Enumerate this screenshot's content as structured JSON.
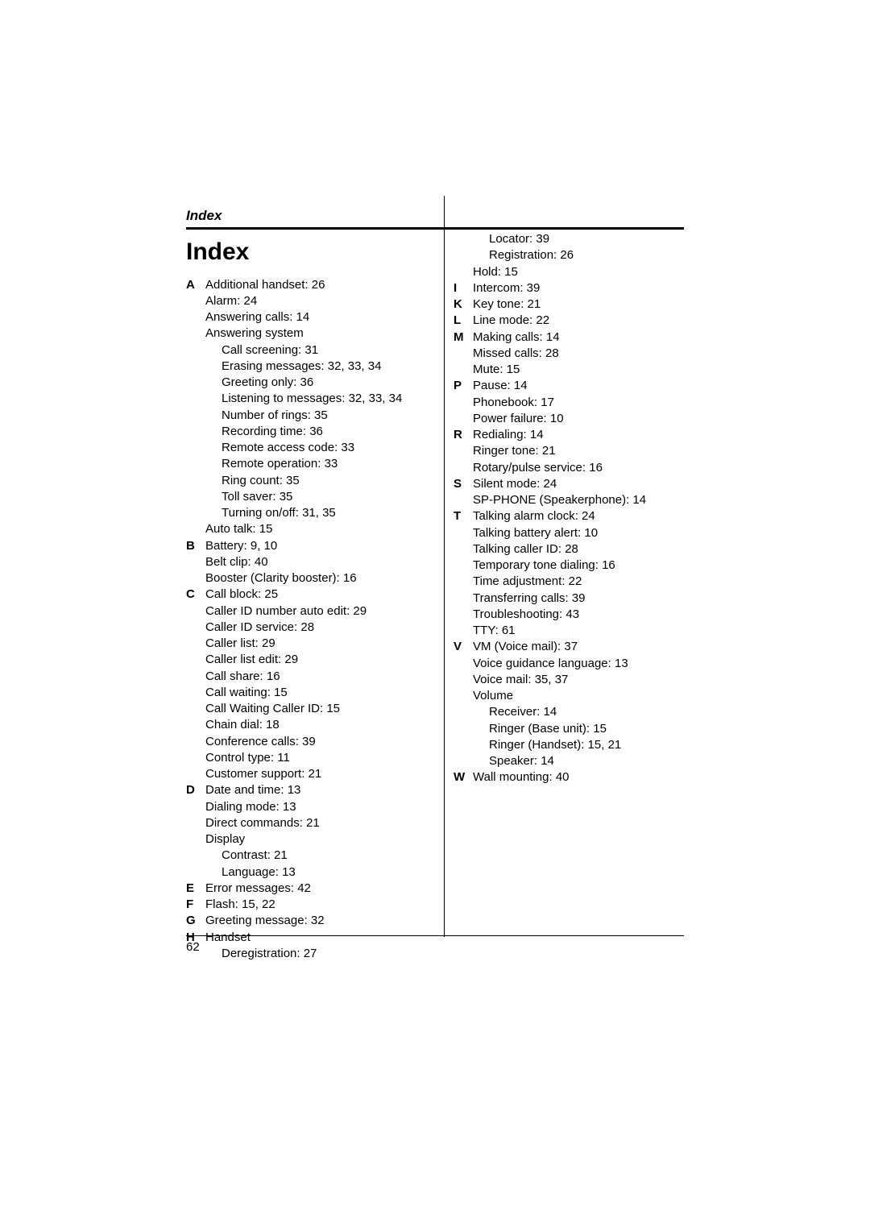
{
  "header": {
    "running_head": "Index",
    "title": "Index",
    "page_number": "62"
  },
  "left": {
    "A": {
      "letter": "A",
      "l0": "Additional handset: 26",
      "l1": "Alarm: 24",
      "l2": "Answering calls: 14",
      "l3": "Answering system",
      "l3a": "Call screening: 31",
      "l3b": "Erasing messages: 32, 33, 34",
      "l3c": "Greeting only: 36",
      "l3d": "Listening to messages: 32, 33, 34",
      "l3e": "Number of rings: 35",
      "l3f": "Recording time: 36",
      "l3g": "Remote access code: 33",
      "l3h": "Remote operation: 33",
      "l3i": "Ring count: 35",
      "l3j": "Toll saver: 35",
      "l3k": "Turning on/off: 31, 35",
      "l4": "Auto talk: 15"
    },
    "B": {
      "letter": "B",
      "l0": "Battery: 9, 10",
      "l1": "Belt clip: 40",
      "l2": "Booster (Clarity booster): 16"
    },
    "C": {
      "letter": "C",
      "l0": "Call block: 25",
      "l1": "Caller ID number auto edit: 29",
      "l2": "Caller ID service: 28",
      "l3": "Caller list: 29",
      "l4": "Caller list edit: 29",
      "l5": "Call share: 16",
      "l6": "Call waiting: 15",
      "l7": "Call Waiting Caller ID: 15",
      "l8": "Chain dial: 18",
      "l9": "Conference calls: 39",
      "l10": "Control type: 11",
      "l11": "Customer support: 21"
    },
    "D": {
      "letter": "D",
      "l0": "Date and time: 13",
      "l1": "Dialing mode: 13",
      "l2": "Direct commands: 21",
      "l3": "Display",
      "l3a": "Contrast: 21",
      "l3b": "Language: 13"
    },
    "E": {
      "letter": "E",
      "l0": "Error messages: 42"
    },
    "F": {
      "letter": "F",
      "l0": "Flash: 15, 22"
    },
    "G": {
      "letter": "G",
      "l0": "Greeting message: 32"
    },
    "H": {
      "letter": "H",
      "l0": "Handset",
      "l0a": "Deregistration: 27"
    }
  },
  "right": {
    "Hcont": {
      "a": "Locator: 39",
      "b": "Registration: 26",
      "c": "Hold: 15"
    },
    "I": {
      "letter": "I",
      "l0": "Intercom: 39"
    },
    "K": {
      "letter": "K",
      "l0": "Key tone: 21"
    },
    "L": {
      "letter": "L",
      "l0": "Line mode: 22"
    },
    "M": {
      "letter": "M",
      "l0": "Making calls: 14",
      "l1": "Missed calls: 28",
      "l2": "Mute: 15"
    },
    "P": {
      "letter": "P",
      "l0": "Pause: 14",
      "l1": "Phonebook: 17",
      "l2": "Power failure: 10"
    },
    "R": {
      "letter": "R",
      "l0": "Redialing: 14",
      "l1": "Ringer tone: 21",
      "l2": "Rotary/pulse service: 16"
    },
    "S": {
      "letter": "S",
      "l0": "Silent mode: 24",
      "l1": "SP-PHONE (Speakerphone): 14"
    },
    "T": {
      "letter": "T",
      "l0": "Talking alarm clock: 24",
      "l1": "Talking battery alert: 10",
      "l2": "Talking caller ID: 28",
      "l3": "Temporary tone dialing: 16",
      "l4": "Time adjustment: 22",
      "l5": "Transferring calls: 39",
      "l6": "Troubleshooting: 43",
      "l7": "TTY: 61"
    },
    "V": {
      "letter": "V",
      "l0": "VM (Voice mail): 37",
      "l1": "Voice guidance language: 13",
      "l2": "Voice mail: 35, 37",
      "l3": "Volume",
      "l3a": "Receiver: 14",
      "l3b": "Ringer (Base unit): 15",
      "l3c": "Ringer (Handset): 15, 21",
      "l3d": "Speaker: 14"
    },
    "W": {
      "letter": "W",
      "l0": "Wall mounting: 40"
    }
  }
}
